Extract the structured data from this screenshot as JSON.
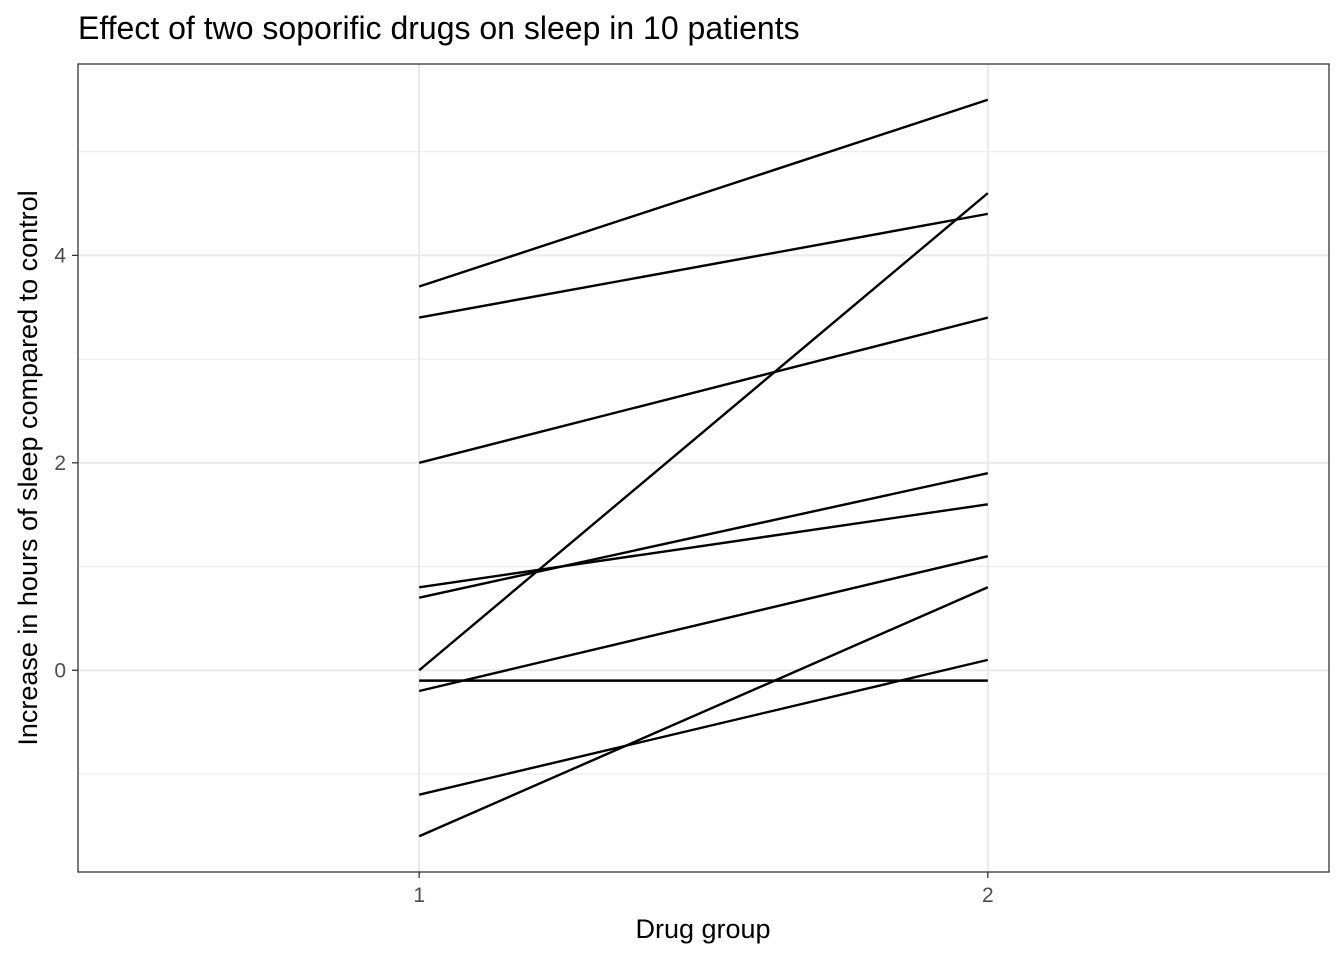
{
  "chart_data": {
    "type": "line",
    "title": "Effect of two soporific drugs on sleep in 10 patients",
    "xlabel": "Drug group",
    "ylabel": "Increase in hours of sleep compared to control",
    "x": [
      1,
      2
    ],
    "xlim": [
      0.4,
      2.6
    ],
    "ylim": [
      -1.945,
      5.845
    ],
    "x_ticks": [
      1,
      2
    ],
    "x_tick_labels": [
      "1",
      "2"
    ],
    "y_ticks": [
      0,
      2,
      4
    ],
    "y_tick_labels": [
      "0",
      "2",
      "4"
    ],
    "y_minor_ticks": [
      -1,
      1,
      3,
      5
    ],
    "grid": true,
    "legend": "none",
    "line_color": "#000000",
    "series": [
      {
        "values": [
          0.7,
          1.9
        ]
      },
      {
        "values": [
          -1.6,
          0.8
        ]
      },
      {
        "values": [
          -0.2,
          1.1
        ]
      },
      {
        "values": [
          -1.2,
          0.1
        ]
      },
      {
        "values": [
          -0.1,
          -0.1
        ]
      },
      {
        "values": [
          3.4,
          4.4
        ]
      },
      {
        "values": [
          3.7,
          5.5
        ]
      },
      {
        "values": [
          0.8,
          1.6
        ]
      },
      {
        "values": [
          0.0,
          4.6
        ]
      },
      {
        "values": [
          2.0,
          3.4
        ]
      }
    ]
  }
}
